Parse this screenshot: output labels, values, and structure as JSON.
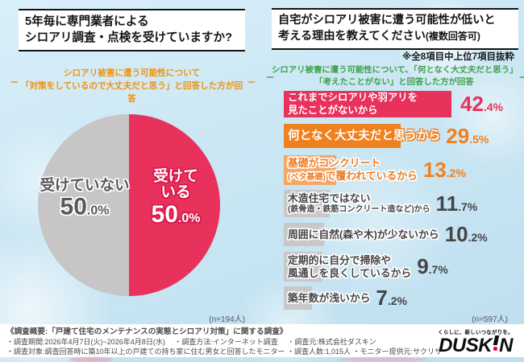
{
  "left": {
    "title_line1": "5年毎に専門業者による",
    "title_line2": "シロアリ調査・点検を受けていますか?",
    "subtitle_line1": "シロアリ被害に遭う可能性について",
    "subtitle_line2": "「対策をしているので大丈夫だと思う」と回答した方が回答",
    "side_mark": "ー",
    "pie": {
      "slices": [
        {
          "label": "受けている",
          "pct_int": "50",
          "pct_rest": ".0%",
          "value": 50.0,
          "color": "#e8315b"
        },
        {
          "label": "受けていない",
          "pct_int": "50",
          "pct_rest": ".0%",
          "value": 50.0,
          "color": "#c7c5c6"
        }
      ],
      "n_label": "(n=194人)"
    }
  },
  "right": {
    "title_line1": "自宅がシロアリ被害に遭う可能性が低いと",
    "title_line2_main": "考える理由を教えてください",
    "title_line2_note": "(複数回答可)",
    "excerpt_note": "※全8項目中上位7項目抜粋",
    "subtitle_line1": "シロアリ被害に遭う可能性について、「何となく大丈夫だと思う」",
    "subtitle_line2": "「考えたことがない」と回答した方が回答",
    "side_mark": "ー",
    "bars": [
      {
        "line1": "これまでシロアリや羽アリを",
        "line2": "見たことがないから",
        "value": 42.4,
        "pct_int": "42",
        "pct_rest": ".4%",
        "bar_color": "#e8315b"
      },
      {
        "line1": "何となく大丈夫だと思うから",
        "value": 29.5,
        "pct_int": "29",
        "pct_rest": ".5%",
        "bar_color": "#f0811f"
      },
      {
        "line1": "基礎がコンクリート",
        "line2a": "(ベタ基礎)",
        "line2b": "で覆われているから",
        "value": 13.2,
        "pct_int": "13",
        "pct_rest": ".2%",
        "bar_color": "#f5a763"
      },
      {
        "line1": "木造住宅ではない",
        "line2": "(鉄骨造・鉄筋コンクリート造など)から",
        "value": 11.7,
        "pct_int": "11",
        "pct_rest": ".7%",
        "bar_color": "#c9c7c8"
      },
      {
        "line1": "周囲に自然(森や木)が少ないから",
        "value": 10.2,
        "pct_int": "10",
        "pct_rest": ".2%",
        "bar_color": "#c9c7c8"
      },
      {
        "line1": "定期的に自分で掃除や",
        "line2": "風通しを良くしているから",
        "value": 9.7,
        "pct_int": "9",
        "pct_rest": ".7%",
        "bar_color": "#c9c7c8"
      },
      {
        "line1": "築年数が浅いから",
        "value": 7.2,
        "pct_int": "7",
        "pct_rest": ".2%",
        "bar_color": "#c9c7c8"
      }
    ],
    "n_label": "(n=597人)"
  },
  "footer": {
    "line1": "《調査概要:「戸建て住宅のメンテナンスの実態とシロアリ対策」に関する調査》",
    "line2": "・調査期間:2026年4月7日(火)~2026年4月8日(水)　 ・調査方法:インターネット調査　 ・調査元:株式会社ダスキン",
    "line3": "・調査対象:調査回答時に築10年以上の戸建ての持ち家に住む男女と回答したモニター ・調査人数:1,015人 ・モニター提供元:サクリサ",
    "logo_tagline": "くらしに、新しいつながりを。",
    "logo_text_left": "DUSK",
    "logo_text_right": "N"
  },
  "chart_data": [
    {
      "type": "pie",
      "title": "5年毎に専門業者によるシロアリ調査・点検を受けていますか?",
      "labels": [
        "受けている",
        "受けていない"
      ],
      "values": [
        50.0,
        50.0
      ],
      "colors": [
        "#e8315b",
        "#c7c5c6"
      ],
      "n": "(n=194人)",
      "legend_position": "inside"
    },
    {
      "type": "bar",
      "orientation": "horizontal",
      "title": "自宅がシロアリ被害に遭う可能性が低いと考える理由を教えてください(複数回答可)",
      "categories": [
        "これまでシロアリや羽アリを見たことがないから",
        "何となく大丈夫だと思うから",
        "基礎がコンクリート(ベタ基礎)で覆われているから",
        "木造住宅ではない(鉄骨造・鉄筋コンクリート造など)から",
        "周囲に自然(森や木)が少ないから",
        "定期的に自分で掃除や風通しを良くしているから",
        "築年数が浅いから"
      ],
      "values": [
        42.4,
        29.5,
        13.2,
        11.7,
        10.2,
        9.7,
        7.2
      ],
      "bar_colors": [
        "#e8315b",
        "#f0811f",
        "#f5a763",
        "#c9c7c8",
        "#c9c7c8",
        "#c9c7c8",
        "#c9c7c8"
      ],
      "xlim": [
        0,
        45
      ],
      "grid": false,
      "note": "※全8項目中上位7項目抜粋",
      "n": "(n=597人)"
    }
  ]
}
